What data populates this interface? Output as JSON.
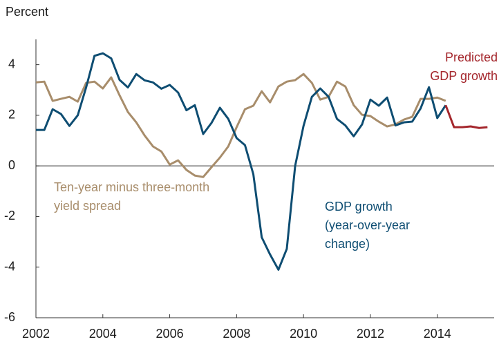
{
  "chart_data": {
    "type": "line",
    "y_label": "Percent",
    "xlim": [
      2002,
      2015.7
    ],
    "ylim": [
      -6,
      5
    ],
    "xticks": [
      2002,
      2004,
      2006,
      2008,
      2010,
      2012,
      2014
    ],
    "yticks": [
      -6,
      -4,
      -2,
      0,
      2,
      4
    ],
    "zero_line": true,
    "series": [
      {
        "name": [
          "Ten-year minus three-month",
          "yield spread"
        ],
        "color": "#a88d6b",
        "x": [
          2002,
          2002.25,
          2002.5,
          2002.75,
          2003,
          2003.25,
          2003.5,
          2003.75,
          2004,
          2004.25,
          2004.5,
          2004.75,
          2005,
          2005.25,
          2005.5,
          2005.75,
          2006,
          2006.25,
          2006.5,
          2006.75,
          2007,
          2007.25,
          2007.5,
          2007.75,
          2008,
          2008.25,
          2008.5,
          2008.75,
          2009,
          2009.25,
          2009.5,
          2009.75,
          2010,
          2010.25,
          2010.5,
          2010.75,
          2011,
          2011.25,
          2011.5,
          2011.75,
          2012,
          2012.25,
          2012.5,
          2012.75,
          2013,
          2013.25,
          2013.5,
          2013.75,
          2014,
          2014.25
        ],
        "values": [
          3.3,
          3.33,
          2.57,
          2.65,
          2.73,
          2.54,
          3.28,
          3.33,
          3.06,
          3.5,
          2.79,
          2.13,
          1.72,
          1.2,
          0.77,
          0.57,
          0.05,
          0.22,
          -0.16,
          -0.38,
          -0.44,
          -0.05,
          0.33,
          0.77,
          1.53,
          2.24,
          2.38,
          2.95,
          2.51,
          3.14,
          3.33,
          3.39,
          3.63,
          3.28,
          2.62,
          2.73,
          3.33,
          3.14,
          2.4,
          2.02,
          1.97,
          1.75,
          1.56,
          1.64,
          1.83,
          1.94,
          2.65,
          2.65,
          2.7,
          2.57
        ]
      },
      {
        "name": [
          "GDP growth",
          "(year-over-year",
          "change)"
        ],
        "color": "#0e4d72",
        "x": [
          2002,
          2002.25,
          2002.5,
          2002.75,
          2003,
          2003.25,
          2003.5,
          2003.75,
          2004,
          2004.25,
          2004.5,
          2004.75,
          2005,
          2005.25,
          2005.5,
          2005.75,
          2006,
          2006.25,
          2006.5,
          2006.75,
          2007,
          2007.25,
          2007.5,
          2007.75,
          2008,
          2008.25,
          2008.5,
          2008.75,
          2009,
          2009.25,
          2009.5,
          2009.75,
          2010,
          2010.25,
          2010.5,
          2010.75,
          2011,
          2011.25,
          2011.5,
          2011.75,
          2012,
          2012.25,
          2012.5,
          2012.75,
          2013,
          2013.25,
          2013.5,
          2013.75,
          2014,
          2014.25
        ],
        "values": [
          1.42,
          1.42,
          2.24,
          2.05,
          1.58,
          2.0,
          3.1,
          4.35,
          4.45,
          4.25,
          3.4,
          3.1,
          3.63,
          3.38,
          3.3,
          3.05,
          3.2,
          2.9,
          2.2,
          2.4,
          1.26,
          1.7,
          2.3,
          1.86,
          1.1,
          0.82,
          -0.33,
          -2.82,
          -3.5,
          -4.1,
          -3.28,
          0,
          1.58,
          2.73,
          3.06,
          2.73,
          1.86,
          1.6,
          1.17,
          1.64,
          2.62,
          2.38,
          2.7,
          1.6,
          1.72,
          1.75,
          2.27,
          3.11,
          1.89,
          2.4
        ]
      },
      {
        "name": [
          "Predicted",
          "GDP growth"
        ],
        "color": "#a4262c",
        "x": [
          2014.25,
          2014.5,
          2014.75,
          2015,
          2015.25,
          2015.5
        ],
        "values": [
          2.4,
          1.53,
          1.53,
          1.56,
          1.5,
          1.53
        ]
      }
    ]
  }
}
